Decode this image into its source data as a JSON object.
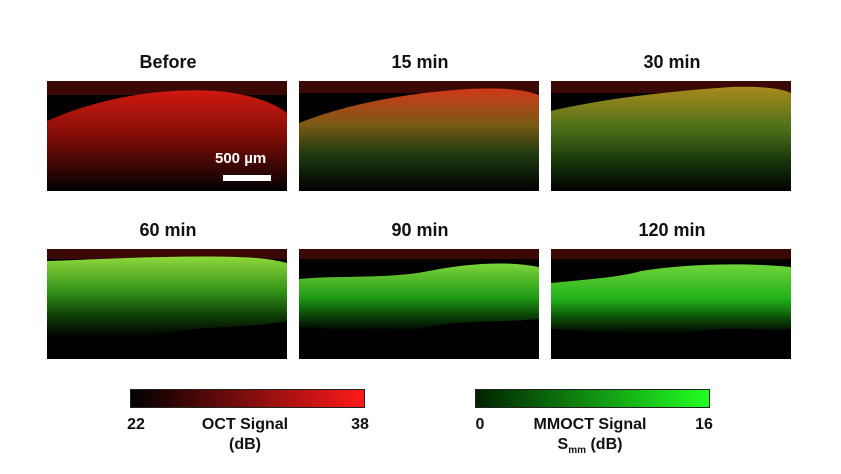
{
  "panels": [
    {
      "title": "Before"
    },
    {
      "title": "15 min"
    },
    {
      "title": "30 min"
    },
    {
      "title": "60 min"
    },
    {
      "title": "90 min"
    },
    {
      "title": "120 min"
    }
  ],
  "scale_bar": {
    "label": "500 µm"
  },
  "oct_colorbar": {
    "min": "22",
    "max": "38",
    "label_line1": "OCT Signal",
    "label_line2": "(dB)",
    "color_low": "#000000",
    "color_high": "#ff1a1a"
  },
  "mmoct_colorbar": {
    "min": "0",
    "max": "16",
    "label_line1": "MMOCT Signal",
    "label_line2_main": "S",
    "label_line2_sub": "mm",
    "label_line2_rest": " (dB)",
    "color_low": "#002200",
    "color_high": "#22ff22"
  }
}
